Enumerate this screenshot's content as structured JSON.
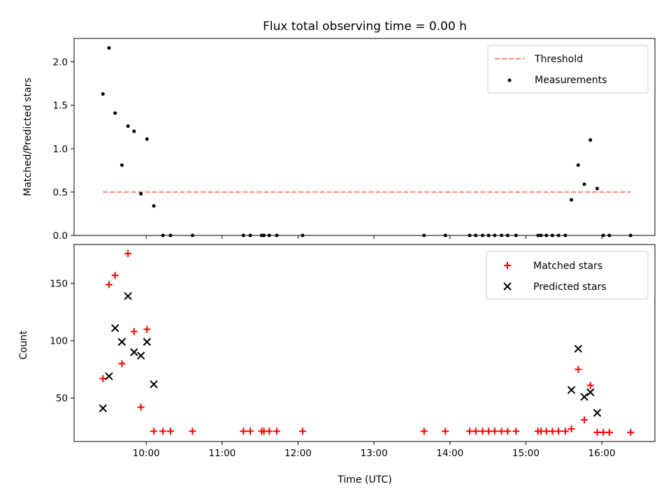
{
  "chart_data": [
    {
      "type": "scatter",
      "title": "Flux total observing time = 0.00 h",
      "xlabel": "",
      "ylabel": "Matched/Predicted stars",
      "ylim": [
        0.0,
        2.27
      ],
      "yticks": [
        0.0,
        0.5,
        1.0,
        1.5,
        2.0
      ],
      "ytick_labels": [
        "0.0",
        "0.5",
        "1.0",
        "1.5",
        "2.0"
      ],
      "xlim_hours": [
        9.05,
        16.7
      ],
      "legend_position": "upper right",
      "series": [
        {
          "name": "Threshold",
          "kind": "line",
          "style": "dashed",
          "color": "#ff7f7f",
          "x_hours": [
            9.43,
            16.38
          ],
          "y": [
            0.5,
            0.5
          ]
        },
        {
          "name": "Measurements",
          "kind": "scatter",
          "marker": "dot",
          "color": "#000000",
          "x_hours": [
            9.43,
            9.51,
            9.59,
            9.68,
            9.76,
            9.84,
            9.93,
            10.01,
            10.1,
            10.22,
            10.32,
            10.61,
            11.28,
            11.37,
            11.52,
            11.55,
            11.62,
            11.72,
            12.06,
            13.66,
            13.94,
            14.26,
            14.34,
            14.43,
            14.51,
            14.59,
            14.68,
            14.76,
            14.87,
            15.16,
            15.2,
            15.27,
            15.35,
            15.43,
            15.52,
            15.6,
            15.69,
            15.77,
            15.85,
            15.94,
            16.02,
            16.1,
            16.38
          ],
          "y": [
            1.63,
            2.16,
            1.41,
            0.81,
            1.26,
            1.2,
            0.48,
            1.11,
            0.34,
            0.0,
            0.0,
            0.0,
            0.0,
            0.0,
            0.0,
            0.0,
            0.0,
            0.0,
            0.0,
            0.0,
            0.0,
            0.0,
            0.0,
            0.0,
            0.0,
            0.0,
            0.0,
            0.0,
            0.0,
            0.0,
            0.0,
            0.0,
            0.0,
            0.0,
            0.0,
            0.41,
            0.81,
            0.59,
            1.1,
            0.54,
            0.0,
            0.0,
            0.0
          ]
        }
      ]
    },
    {
      "type": "scatter",
      "title": "",
      "xlabel": "Time (UTC)",
      "ylabel": "Count",
      "ylim": [
        12.0,
        184.0
      ],
      "yticks": [
        50,
        100,
        150
      ],
      "ytick_labels": [
        "50",
        "100",
        "150"
      ],
      "xlim_hours": [
        9.05,
        16.7
      ],
      "xticks_hours": [
        10,
        11,
        12,
        13,
        14,
        15,
        16
      ],
      "xtick_labels": [
        "10:00",
        "11:00",
        "12:00",
        "13:00",
        "14:00",
        "15:00",
        "16:00"
      ],
      "legend_position": "upper right",
      "series": [
        {
          "name": "Matched stars",
          "kind": "scatter",
          "marker": "plus",
          "color": "#ff0000",
          "x_hours": [
            9.43,
            9.51,
            9.59,
            9.68,
            9.76,
            9.84,
            9.93,
            10.01,
            10.1,
            10.22,
            10.32,
            10.61,
            11.28,
            11.37,
            11.52,
            11.55,
            11.62,
            11.72,
            12.06,
            13.66,
            13.94,
            14.26,
            14.34,
            14.43,
            14.51,
            14.59,
            14.68,
            14.76,
            14.87,
            15.16,
            15.2,
            15.27,
            15.35,
            15.43,
            15.52,
            15.6,
            15.69,
            15.77,
            15.85,
            15.94,
            16.02,
            16.1,
            16.38
          ],
          "y": [
            67,
            149,
            157,
            80,
            176,
            108,
            42,
            110,
            21,
            21,
            21,
            21,
            21,
            21,
            21,
            21,
            21,
            21,
            21,
            21,
            21,
            21,
            21,
            21,
            21,
            21,
            21,
            21,
            21,
            21,
            21,
            21,
            21,
            21,
            21,
            23,
            75,
            31,
            61,
            20,
            20,
            20,
            20
          ]
        },
        {
          "name": "Predicted stars",
          "kind": "scatter",
          "marker": "x",
          "color": "#000000",
          "x_hours": [
            9.43,
            9.51,
            9.59,
            9.68,
            9.76,
            9.84,
            9.93,
            10.01,
            10.1,
            15.6,
            15.69,
            15.77,
            15.85,
            15.94
          ],
          "y": [
            41,
            69,
            111,
            99,
            139,
            90,
            87,
            99,
            62,
            57,
            93,
            51,
            55,
            37
          ]
        }
      ]
    }
  ]
}
